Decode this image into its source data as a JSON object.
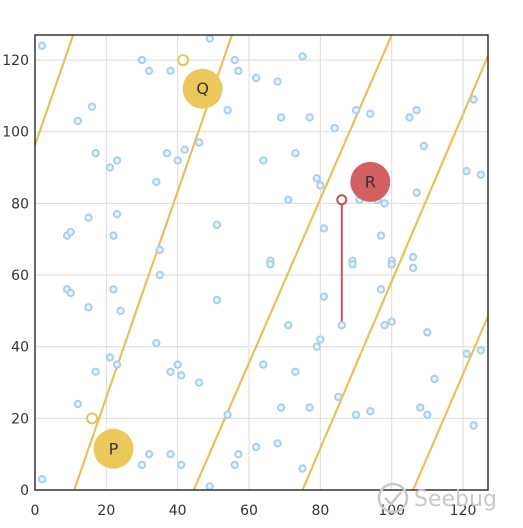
{
  "chart_data": {
    "type": "scatter",
    "title": "",
    "xlabel": "",
    "ylabel": "",
    "xlim": [
      0,
      127
    ],
    "ylim": [
      0,
      127
    ],
    "xticks": [
      "0",
      "20",
      "40",
      "60",
      "80",
      "100",
      "120"
    ],
    "yticks": [
      "0",
      "20",
      "40",
      "60",
      "80",
      "100",
      "120"
    ],
    "grid": true,
    "points": [
      [
        2,
        124
      ],
      [
        30,
        120
      ],
      [
        32,
        117
      ],
      [
        38,
        117
      ],
      [
        49,
        126
      ],
      [
        56,
        120
      ],
      [
        57,
        117
      ],
      [
        62,
        115
      ],
      [
        68,
        114
      ],
      [
        75,
        121
      ],
      [
        12,
        103
      ],
      [
        16,
        107
      ],
      [
        17,
        94
      ],
      [
        21,
        90
      ],
      [
        23,
        92
      ],
      [
        37,
        94
      ],
      [
        40,
        92
      ],
      [
        42,
        95
      ],
      [
        46,
        97
      ],
      [
        54,
        106
      ],
      [
        64,
        92
      ],
      [
        69,
        104
      ],
      [
        73,
        94
      ],
      [
        77,
        104
      ],
      [
        79,
        87
      ],
      [
        80,
        85
      ],
      [
        84,
        101
      ],
      [
        90,
        106
      ],
      [
        94,
        105
      ],
      [
        105,
        104
      ],
      [
        107,
        106
      ],
      [
        109,
        96
      ],
      [
        121,
        89
      ],
      [
        123,
        109
      ],
      [
        125,
        88
      ],
      [
        34,
        86
      ],
      [
        15,
        76
      ],
      [
        23,
        77
      ],
      [
        22,
        71
      ],
      [
        9,
        71
      ],
      [
        10,
        72
      ],
      [
        35,
        67
      ],
      [
        51,
        74
      ],
      [
        71,
        81
      ],
      [
        81,
        73
      ],
      [
        91,
        81
      ],
      [
        96,
        81
      ],
      [
        98,
        80
      ],
      [
        107,
        83
      ],
      [
        35,
        60
      ],
      [
        66,
        64
      ],
      [
        66,
        63
      ],
      [
        89,
        64
      ],
      [
        89,
        63
      ],
      [
        97,
        71
      ],
      [
        100,
        64
      ],
      [
        100,
        63
      ],
      [
        106,
        65
      ],
      [
        106,
        62
      ],
      [
        9,
        56
      ],
      [
        10,
        55
      ],
      [
        15,
        51
      ],
      [
        22,
        56
      ],
      [
        24,
        50
      ],
      [
        51,
        53
      ],
      [
        71,
        46
      ],
      [
        79,
        40
      ],
      [
        80,
        42
      ],
      [
        81,
        54
      ],
      [
        97,
        56
      ],
      [
        98,
        46
      ],
      [
        100,
        47
      ],
      [
        110,
        44
      ],
      [
        21,
        37
      ],
      [
        23,
        35
      ],
      [
        17,
        33
      ],
      [
        34,
        41
      ],
      [
        38,
        33
      ],
      [
        40,
        35
      ],
      [
        41,
        32
      ],
      [
        46,
        30
      ],
      [
        64,
        35
      ],
      [
        73,
        33
      ],
      [
        12,
        24
      ],
      [
        54,
        21
      ],
      [
        69,
        23
      ],
      [
        77,
        23
      ],
      [
        85,
        26
      ],
      [
        90,
        21
      ],
      [
        94,
        22
      ],
      [
        108,
        23
      ],
      [
        110,
        21
      ],
      [
        112,
        31
      ],
      [
        121,
        38
      ],
      [
        125,
        39
      ],
      [
        123,
        18
      ],
      [
        30,
        7
      ],
      [
        32,
        10
      ],
      [
        38,
        10
      ],
      [
        41,
        7
      ],
      [
        49,
        1
      ],
      [
        56,
        7
      ],
      [
        57,
        10
      ],
      [
        62,
        12
      ],
      [
        68,
        13
      ],
      [
        75,
        6
      ],
      [
        2,
        3
      ],
      [
        21,
        9
      ]
    ],
    "diagonal_lines": [
      {
        "x_at_y0": -33.5,
        "x_at_y127": 10.7
      },
      {
        "x_at_y0": 11.0,
        "x_at_y127": 55.2
      },
      {
        "x_at_y0": 44.5,
        "x_at_y127": 100.0
      },
      {
        "x_at_y0": 75.0,
        "x_at_y127": 129.5
      },
      {
        "x_at_y0": 106.0,
        "x_at_y127": 161.0
      }
    ],
    "open_markers": [
      {
        "x": 41.5,
        "y": 120
      },
      {
        "x": 16,
        "y": 20
      }
    ],
    "segment": {
      "x1": 86,
      "y1": 81,
      "x2": 86,
      "y2": 46
    },
    "labeled_points": [
      {
        "label": "Q",
        "x": 47,
        "y": 112,
        "color": "#ecc85a"
      },
      {
        "label": "R",
        "x": 94,
        "y": 86,
        "color": "#d26060"
      },
      {
        "label": "P",
        "x": 22,
        "y": 11.5,
        "color": "#ecc85a"
      }
    ]
  },
  "watermark": {
    "text": "Seebug"
  }
}
